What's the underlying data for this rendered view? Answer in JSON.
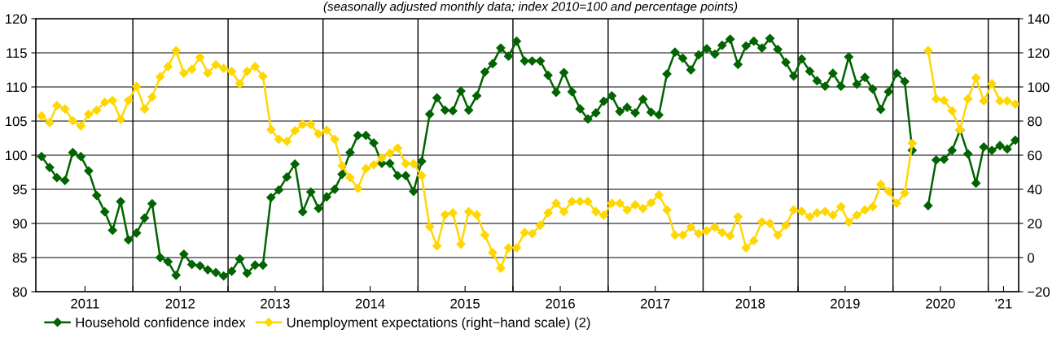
{
  "chart_data": {
    "type": "line",
    "title": "(seasonally adjusted monthly data; index 2010=100 and percentage points)",
    "x": [
      "2011-01-15",
      "2011-02-15",
      "2011-03-15",
      "2011-04-15",
      "2011-05-15",
      "2011-06-15",
      "2011-07-15",
      "2011-08-15",
      "2011-09-15",
      "2011-10-15",
      "2011-11-15",
      "2011-12-15",
      "2012-01-15",
      "2012-02-15",
      "2012-03-15",
      "2012-04-15",
      "2012-05-15",
      "2012-06-15",
      "2012-07-15",
      "2012-08-15",
      "2012-09-15",
      "2012-10-15",
      "2012-11-15",
      "2012-12-15",
      "2013-01-15",
      "2013-02-15",
      "2013-03-15",
      "2013-04-15",
      "2013-05-15",
      "2013-06-15",
      "2013-07-15",
      "2013-08-15",
      "2013-09-15",
      "2013-10-15",
      "2013-11-15",
      "2013-12-15",
      "2014-01-15",
      "2014-02-15",
      "2014-03-15",
      "2014-04-15",
      "2014-05-15",
      "2014-06-15",
      "2014-07-15",
      "2014-08-15",
      "2014-09-15",
      "2014-10-15",
      "2014-11-15",
      "2014-12-15",
      "2015-01-15",
      "2015-02-15",
      "2015-03-15",
      "2015-04-15",
      "2015-05-15",
      "2015-06-15",
      "2015-07-15",
      "2015-08-15",
      "2015-09-15",
      "2015-10-15",
      "2015-11-15",
      "2015-12-15",
      "2016-01-15",
      "2016-02-15",
      "2016-03-15",
      "2016-04-15",
      "2016-05-15",
      "2016-06-15",
      "2016-07-15",
      "2016-08-15",
      "2016-09-15",
      "2016-10-15",
      "2016-11-15",
      "2016-12-15",
      "2017-01-15",
      "2017-02-15",
      "2017-03-15",
      "2017-04-15",
      "2017-05-15",
      "2017-06-15",
      "2017-07-15",
      "2017-08-15",
      "2017-09-15",
      "2017-10-15",
      "2017-11-15",
      "2017-12-15",
      "2018-01-15",
      "2018-02-15",
      "2018-03-15",
      "2018-04-15",
      "2018-05-15",
      "2018-06-15",
      "2018-07-15",
      "2018-08-15",
      "2018-09-15",
      "2018-10-15",
      "2018-11-15",
      "2018-12-15",
      "2019-01-15",
      "2019-02-15",
      "2019-03-15",
      "2019-04-15",
      "2019-05-15",
      "2019-06-15",
      "2019-07-15",
      "2019-08-15",
      "2019-09-15",
      "2019-10-15",
      "2019-11-15",
      "2019-12-15",
      "2020-01-15",
      "2020-02-15",
      "2020-03-15",
      "2020-04-15",
      "2020-05-15",
      "2020-06-15",
      "2020-07-15",
      "2020-08-15",
      "2020-09-15",
      "2020-10-15",
      "2020-11-15",
      "2020-12-15",
      "2021-01-15",
      "2021-02-15",
      "2021-03-15",
      "2021-04-15"
    ],
    "series": [
      {
        "name": "Household confidence index",
        "color": "#006400",
        "values": [
          99.8,
          98.2,
          96.7,
          96.3,
          100.4,
          99.8,
          97.7,
          94.1,
          91.7,
          89.0,
          93.2,
          87.6,
          88.6,
          90.8,
          92.9,
          85.0,
          84.4,
          82.4,
          85.5,
          84.0,
          83.8,
          83.2,
          82.8,
          82.3,
          83.0,
          84.8,
          82.7,
          83.9,
          83.9,
          93.8,
          94.9,
          96.8,
          98.7,
          91.7,
          94.6,
          92.2,
          93.9,
          95.0,
          97.2,
          100.4,
          102.9,
          102.9,
          101.8,
          98.8,
          98.8,
          97.0,
          97.0,
          94.7,
          99.1,
          106.0,
          108.4,
          106.6,
          106.5,
          109.4,
          106.6,
          108.7,
          112.2,
          113.4,
          115.7,
          114.5,
          116.7,
          113.8,
          113.8,
          113.8,
          111.7,
          109.2,
          112.1,
          109.3,
          106.8,
          105.3,
          106.2,
          107.9,
          108.7,
          106.4,
          107.0,
          106.2,
          108.2,
          106.3,
          105.9,
          111.9,
          115.1,
          114.2,
          112.5,
          114.7,
          115.6,
          114.8,
          116.1,
          117.0,
          113.3,
          116.0,
          116.7,
          115.7,
          117.1,
          115.5,
          113.6,
          111.6,
          114.1,
          112.3,
          110.9,
          110.1,
          112.0,
          110.1,
          114.4,
          110.4,
          111.4,
          109.7,
          106.7,
          109.3,
          112.0,
          110.8,
          100.7,
          null,
          92.6,
          99.3,
          99.4,
          100.7,
          103.7,
          100.2,
          95.9,
          101.2,
          100.7,
          101.4,
          100.9,
          102.2
        ]
      },
      {
        "name": "Unemployment expectations (right−hand scale) (2)",
        "color": "#ffd700",
        "axis": "y2",
        "values": [
          83.0,
          79.1,
          89.1,
          87.1,
          80.2,
          77.1,
          84.0,
          86.4,
          91.0,
          92.1,
          80.9,
          92.1,
          100.3,
          87.1,
          94.1,
          106.0,
          111.9,
          121.2,
          108.1,
          110.4,
          117.4,
          108.1,
          113.0,
          110.9,
          109.1,
          101.9,
          109.1,
          111.9,
          106.2,
          75.0,
          69.3,
          68.1,
          74.3,
          78.1,
          78.1,
          72.4,
          74.7,
          69.3,
          53.8,
          46.8,
          40.6,
          52.2,
          54.3,
          58.4,
          61.1,
          64.2,
          55.0,
          55.0,
          48.1,
          18.1,
          6.8,
          25.1,
          26.2,
          7.8,
          26.9,
          25.1,
          13.2,
          2.9,
          -6.2,
          5.7,
          5.7,
          14.7,
          14.0,
          18.9,
          26.2,
          31.8,
          26.9,
          32.9,
          32.9,
          32.9,
          26.9,
          24.8,
          31.8,
          31.8,
          27.9,
          30.9,
          28.7,
          32.1,
          36.7,
          27.9,
          13.2,
          13.2,
          17.8,
          14.0,
          15.8,
          17.8,
          14.7,
          12.7,
          23.9,
          5.7,
          9.9,
          20.9,
          20.0,
          13.2,
          18.9,
          27.9,
          27.1,
          23.9,
          26.2,
          27.0,
          24.8,
          29.8,
          20.8,
          24.8,
          27.9,
          29.8,
          42.9,
          38.8,
          31.8,
          37.8,
          67.0,
          null,
          121.2,
          93.0,
          92.1,
          86.0,
          75.0,
          93.0,
          105.3,
          91.8,
          101.9,
          91.8,
          91.8,
          89.9
        ]
      }
    ],
    "xlim": [
      "2010-12-24",
      "2021-04-28"
    ],
    "xticks": [
      {
        "value": "2012-01-01",
        "label": null
      },
      {
        "value": "2013-01-01",
        "label": null
      },
      {
        "value": "2014-01-01",
        "label": null
      },
      {
        "value": "2015-01-01",
        "label": null
      },
      {
        "value": "2016-01-01",
        "label": null
      },
      {
        "value": "2017-01-01",
        "label": null
      },
      {
        "value": "2018-01-01",
        "label": null
      },
      {
        "value": "2019-01-01",
        "label": null
      },
      {
        "value": "2020-01-01",
        "label": null
      },
      {
        "value": "2021-01-01",
        "label": null
      },
      {
        "value": "2011-07-01",
        "label": "2011"
      },
      {
        "value": "2012-07-01",
        "label": "2012"
      },
      {
        "value": "2013-07-01",
        "label": "2013"
      },
      {
        "value": "2014-07-01",
        "label": "2014"
      },
      {
        "value": "2015-07-01",
        "label": "2015"
      },
      {
        "value": "2016-07-01",
        "label": "2016"
      },
      {
        "value": "2017-07-01",
        "label": "2017"
      },
      {
        "value": "2018-07-01",
        "label": "2018"
      },
      {
        "value": "2019-07-01",
        "label": "2019"
      },
      {
        "value": "2020-07-01",
        "label": "2020"
      },
      {
        "value": "2021-03-01",
        "label": "'21"
      }
    ],
    "ylim": [
      80,
      120
    ],
    "yticks": [
      80,
      85,
      90,
      95,
      100,
      105,
      110,
      115,
      120
    ],
    "y2lim": [
      -20,
      140
    ],
    "y2ticks": [
      -20,
      0,
      20,
      40,
      60,
      80,
      100,
      120,
      140
    ],
    "ref_lines": [
      {
        "axis": "x",
        "value": "2012-01-01",
        "color": "#000000"
      },
      {
        "axis": "x",
        "value": "2013-01-01",
        "color": "#000000"
      },
      {
        "axis": "x",
        "value": "2014-01-01",
        "color": "#000000"
      },
      {
        "axis": "x",
        "value": "2015-01-01",
        "color": "#000000"
      },
      {
        "axis": "x",
        "value": "2016-01-01",
        "color": "#000000"
      },
      {
        "axis": "x",
        "value": "2017-01-01",
        "color": "#000000"
      },
      {
        "axis": "x",
        "value": "2018-01-01",
        "color": "#000000"
      },
      {
        "axis": "x",
        "value": "2019-01-01",
        "color": "#000000"
      },
      {
        "axis": "x",
        "value": "2020-01-01",
        "color": "#000000"
      },
      {
        "axis": "x",
        "value": "2021-01-01",
        "color": "#000000"
      }
    ],
    "grid": "y",
    "legend": "bottom left",
    "marker": "diamond",
    "line_style": "solid"
  }
}
